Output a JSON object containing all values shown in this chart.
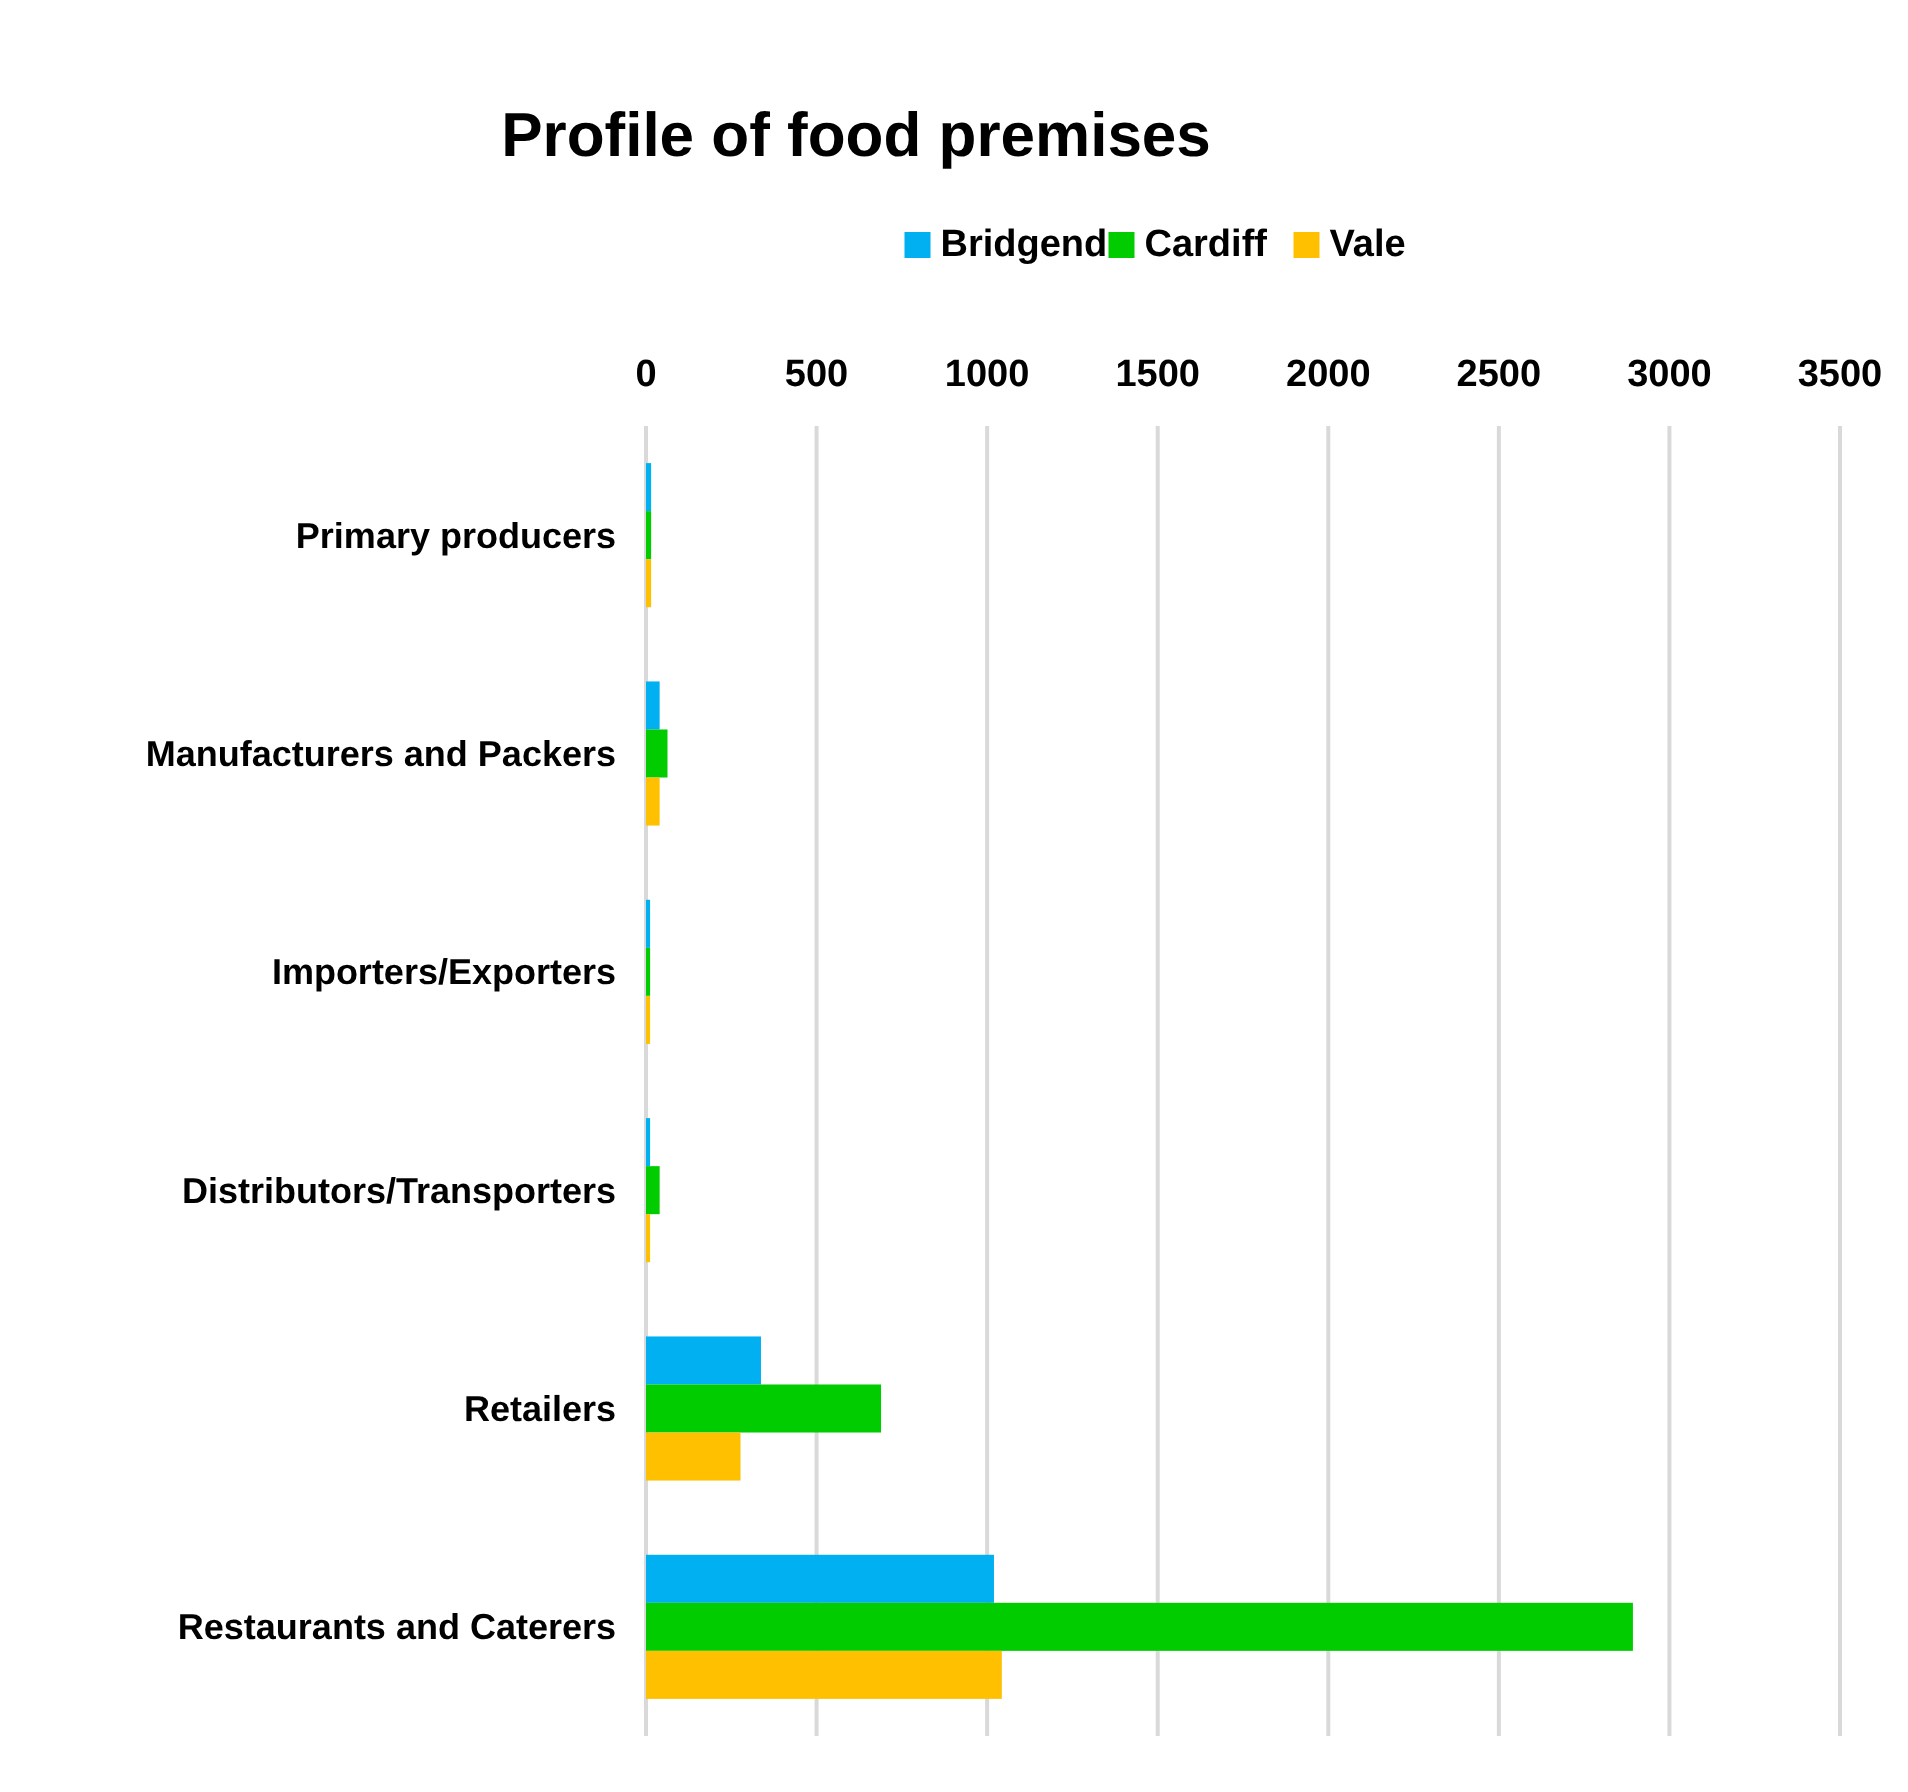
{
  "chart_data": {
    "type": "bar",
    "orientation": "horizontal",
    "title": "Profile of food premises",
    "categories": [
      "Primary producers",
      "Manufacturers and Packers",
      "Importers/Exporters",
      "Distributors/Transporters",
      "Retailers",
      "Restaurants and Caterers"
    ],
    "series": [
      {
        "name": "Bridgend",
        "color": "#00b0f0",
        "values": [
          15,
          40,
          12,
          12,
          337,
          1020
        ]
      },
      {
        "name": "Cardiff",
        "color": "#00cc00",
        "values": [
          15,
          63,
          12,
          40,
          689,
          2893
        ]
      },
      {
        "name": "Vale",
        "color": "#ffc000",
        "values": [
          15,
          40,
          12,
          12,
          277,
          1043
        ]
      }
    ],
    "xlim": [
      0,
      3500
    ],
    "xticks": [
      0,
      500,
      1000,
      1500,
      2000,
      2500,
      3000,
      3500
    ],
    "grid": "x",
    "legend": "top"
  }
}
